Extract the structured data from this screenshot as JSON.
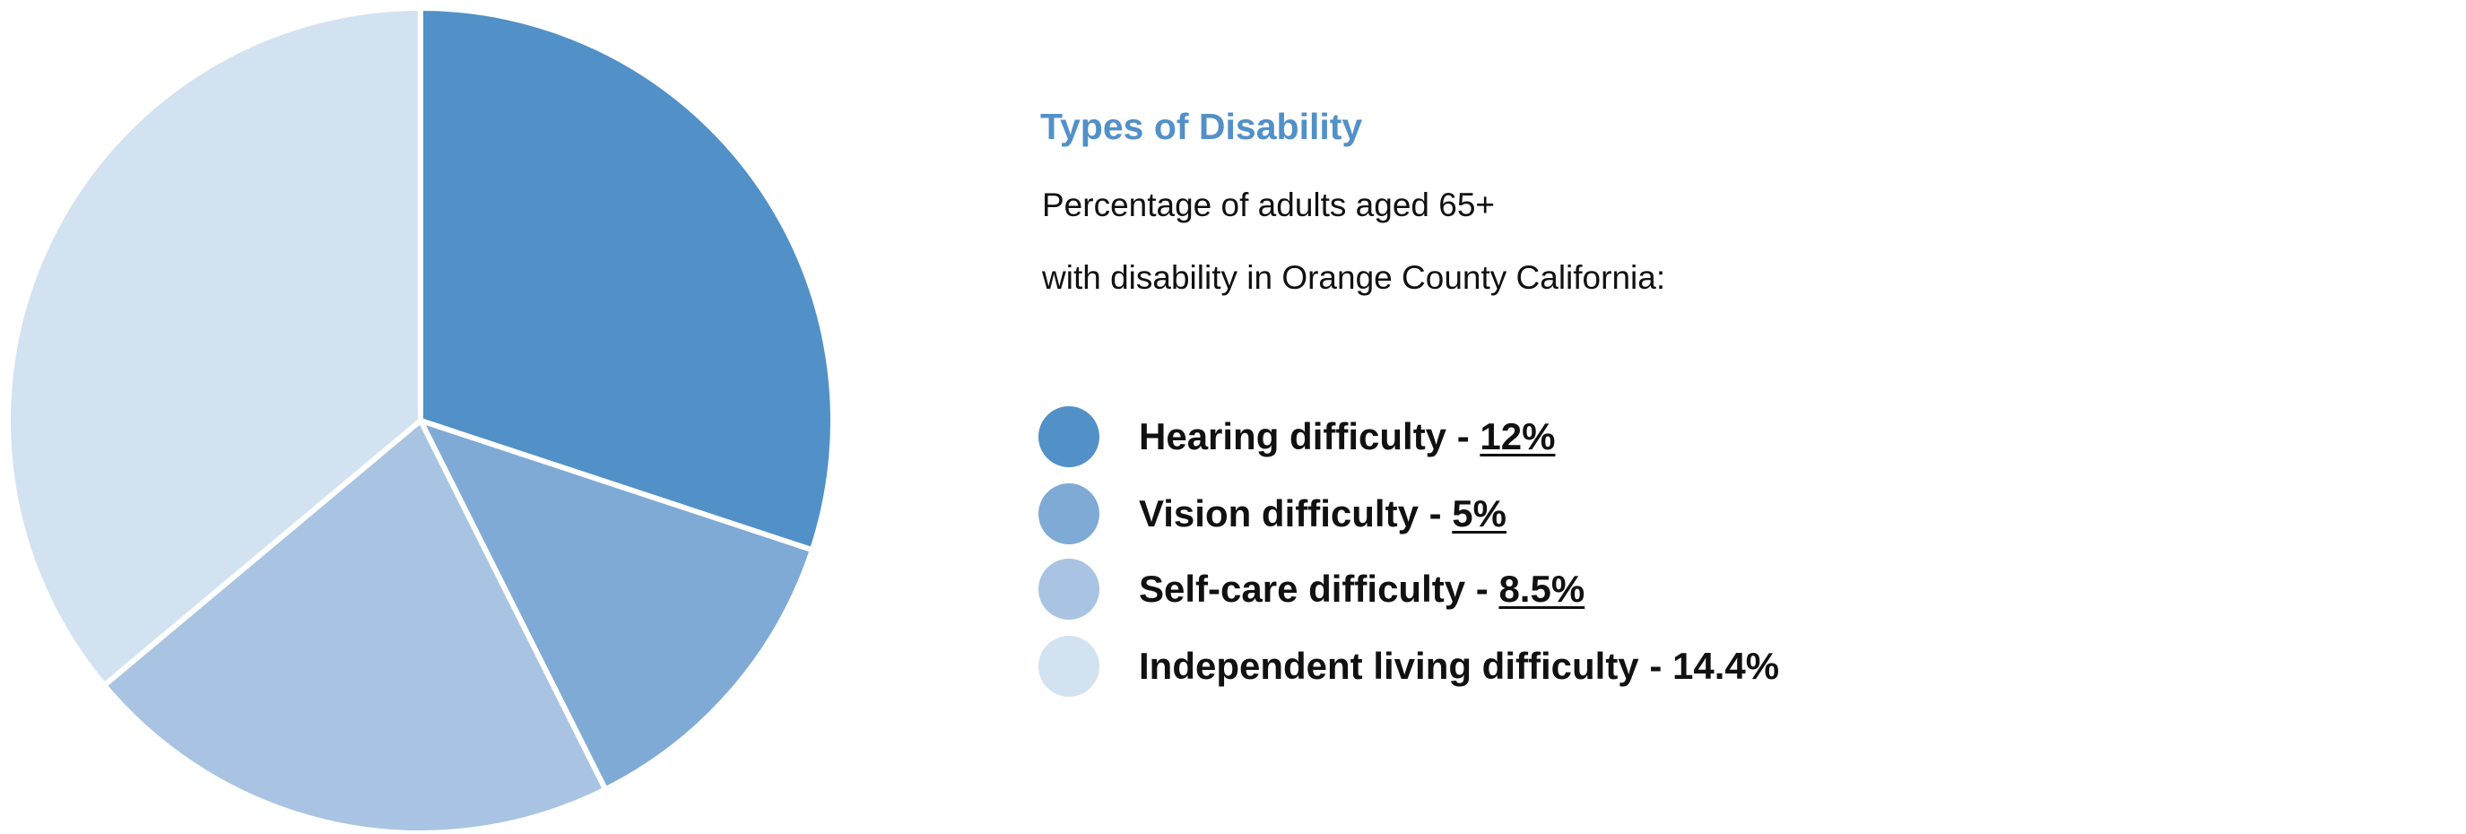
{
  "chart_data": {
    "type": "pie",
    "title": "Types of Disability",
    "subtitle_lines": [
      "Percentage of adults aged 65+",
      "with disability in Orange County California:"
    ],
    "legend_placement": "right",
    "slices": [
      {
        "label": "Hearing difficulty",
        "value": 12,
        "value_label": "12%",
        "color": "#5290c8",
        "underlined": true
      },
      {
        "label": "Vision difficulty",
        "value": 5,
        "value_label": "5%",
        "color": "#7faad6",
        "underlined": true
      },
      {
        "label": "Self-care difficulty",
        "value": 8.5,
        "value_label": "8.5%",
        "color": "#a8c4e2",
        "underlined": true
      },
      {
        "label": "Independent living difficulty",
        "value": 14.4,
        "value_label": "14.4%",
        "color": "#d3e2f1",
        "underlined": false
      }
    ],
    "separator": " - "
  }
}
